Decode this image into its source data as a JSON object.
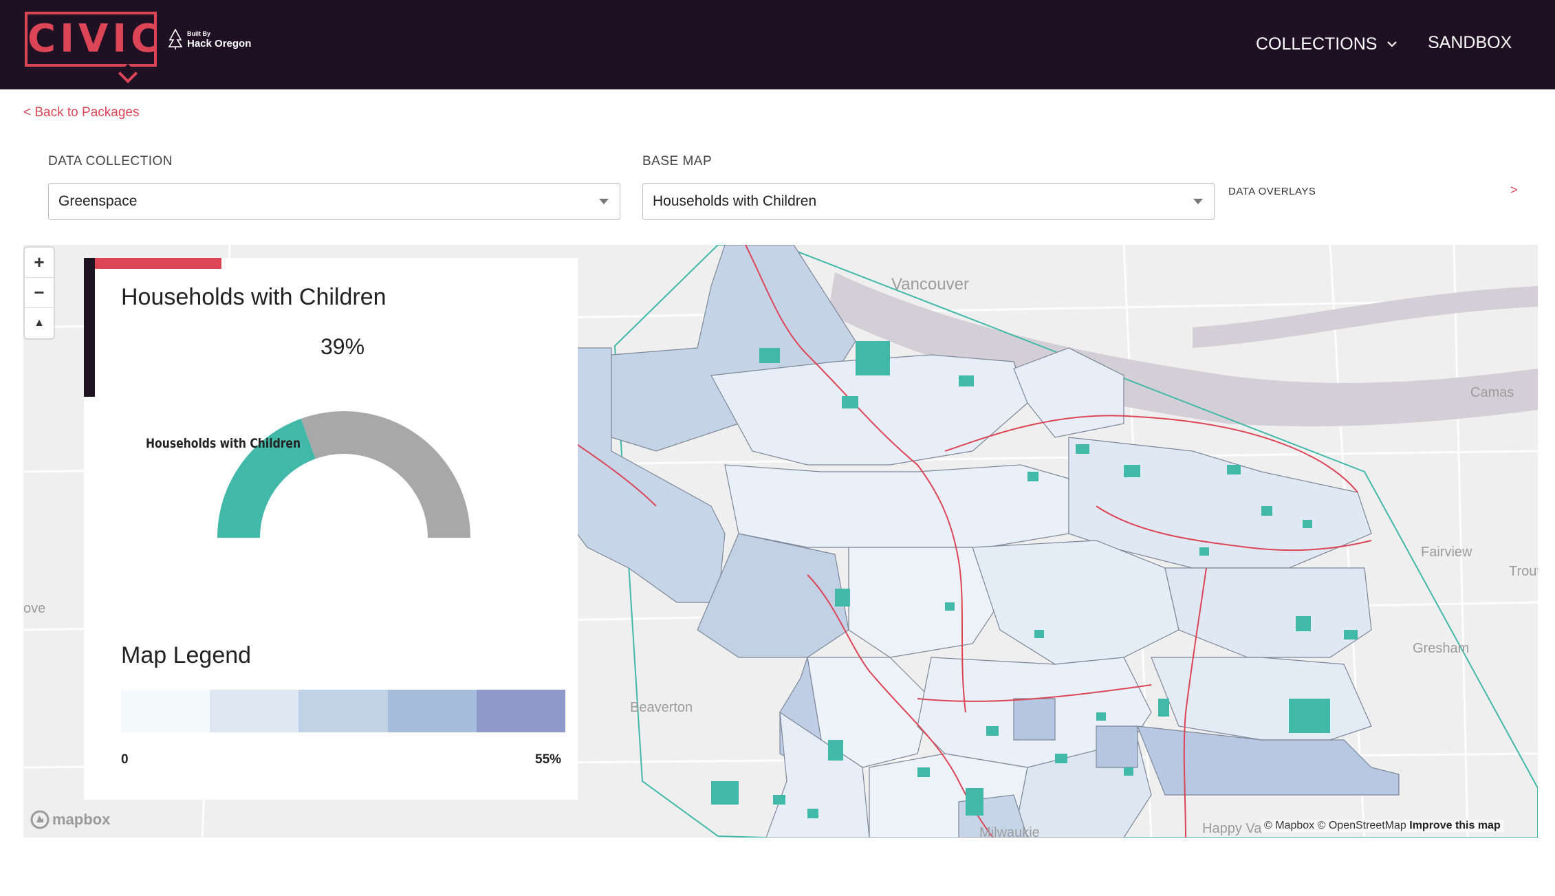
{
  "header": {
    "logo_text": "CIVIC",
    "built_by_small": "Built By",
    "built_by_name": "Hack Oregon",
    "nav": [
      {
        "label": "COLLECTIONS"
      },
      {
        "label": "SANDBOX"
      }
    ]
  },
  "back_link": "< Back to Packages",
  "controls": {
    "data_collection": {
      "label": "DATA COLLECTION",
      "value": "Greenspace"
    },
    "base_map": {
      "label": "BASE MAP",
      "value": "Households with Children"
    },
    "data_overlays": {
      "label": "DATA OVERLAYS",
      "arrow": ">"
    }
  },
  "map": {
    "zoom_in": "+",
    "zoom_out": "−",
    "compass": "▲",
    "place_labels": [
      {
        "name": "Vancouver"
      },
      {
        "name": "Camas"
      },
      {
        "name": "Fairview"
      },
      {
        "name": "Trout"
      },
      {
        "name": "Gresham"
      },
      {
        "name": "Beaverton"
      },
      {
        "name": "Milwaukie"
      },
      {
        "name": "Happy Va"
      },
      {
        "name": "ove"
      }
    ],
    "mapbox_logo": "mapbox",
    "attribution": {
      "mapbox": "© Mapbox",
      "osm": "© OpenStreetMap",
      "improve": "Improve this map"
    }
  },
  "panel": {
    "title": "Households with Children",
    "value": "39%",
    "gauge": {
      "label": "Households with Children",
      "fraction": 0.39,
      "fill_color": "#42b8a8",
      "rest_color": "#a8a8a8"
    },
    "legend": {
      "title": "Map Legend",
      "min": "0",
      "max": "55%",
      "colors": [
        "#f5fafc",
        "#dde8f2",
        "#c0d2e6",
        "#a5bcdc",
        "#8f9acb"
      ]
    }
  },
  "colors": {
    "accent": "#dc4556",
    "header_bg": "#201024",
    "greenspace": "#42b8a8"
  }
}
